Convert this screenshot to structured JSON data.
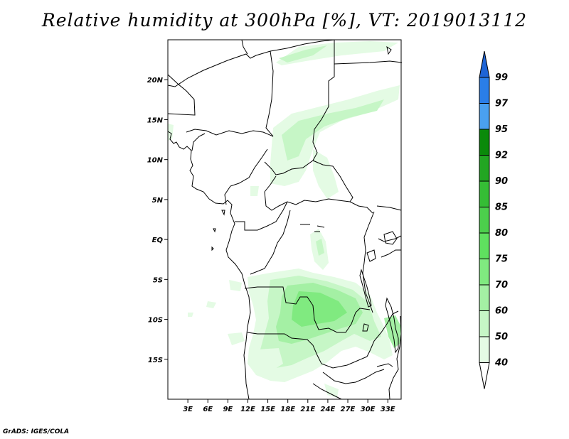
{
  "title": "Relative humidity at 300hPa [%], VT: 2019013112",
  "credit": "GrADS: IGES/COLA",
  "map": {
    "lat_range": [
      -20,
      25
    ],
    "lon_range": [
      0,
      35
    ],
    "lat_ticks": [
      {
        "lat": 20,
        "label": "20N"
      },
      {
        "lat": 15,
        "label": "15N"
      },
      {
        "lat": 10,
        "label": "10N"
      },
      {
        "lat": 5,
        "label": "5N"
      },
      {
        "lat": 0,
        "label": "EQ"
      },
      {
        "lat": -5,
        "label": "5S"
      },
      {
        "lat": -10,
        "label": "10S"
      },
      {
        "lat": -15,
        "label": "15S"
      }
    ],
    "lon_ticks": [
      {
        "lon": 3,
        "label": "3E"
      },
      {
        "lon": 6,
        "label": "6E"
      },
      {
        "lon": 9,
        "label": "9E"
      },
      {
        "lon": 12,
        "label": "12E"
      },
      {
        "lon": 15,
        "label": "15E"
      },
      {
        "lon": 18,
        "label": "18E"
      },
      {
        "lon": 21,
        "label": "21E"
      },
      {
        "lon": 24,
        "label": "24E"
      },
      {
        "lon": 27,
        "label": "27E"
      },
      {
        "lon": 30,
        "label": "30E"
      },
      {
        "lon": 33,
        "label": "33E"
      }
    ]
  },
  "colorbar": {
    "levels": [
      "99",
      "97",
      "95",
      "92",
      "90",
      "85",
      "80",
      "75",
      "70",
      "60",
      "50",
      "40"
    ],
    "colors": [
      "#1e64d6",
      "#2a7ee8",
      "#4aa0f0",
      "#0a8a0a",
      "#22a622",
      "#35bd35",
      "#4ccf4c",
      "#5fe05f",
      "#80ea80",
      "#a4f0a4",
      "#c6f6c6",
      "#e4fbe4",
      "#ffffff"
    ]
  }
}
